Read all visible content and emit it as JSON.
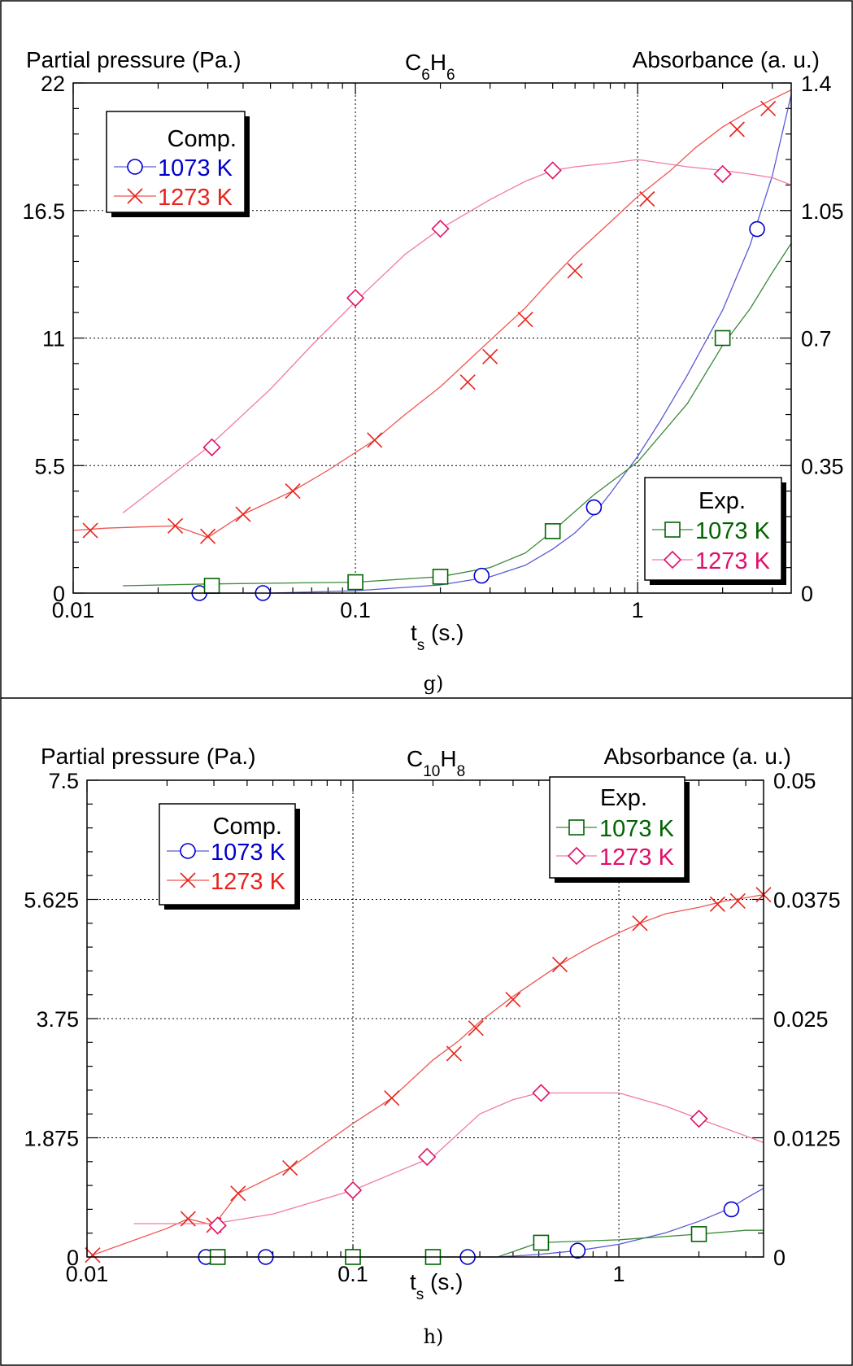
{
  "colors": {
    "comp_1073": "#0000cc",
    "comp_1273": "#e8221c",
    "exp_1073": "#006400",
    "exp_1273": "#e0106a",
    "line_exp_1073": "#3a8a3a",
    "line_exp_1273": "#f07aa8",
    "line_comp_1073": "#5a5ad8",
    "line_comp_1273": "#ef5550"
  },
  "chart_data": [
    {
      "type": "line",
      "panel_label": "g)",
      "title_main": "C",
      "title_sub1": "6",
      "title_mid": "H",
      "title_sub2": "6",
      "ylabel_left": "Partial pressure (Pa.)",
      "ylabel_right": "Absorbance (a. u.)",
      "xlabel_main": "t",
      "xlabel_sub": "s",
      "xlabel_unit": " (s.)",
      "x_scale": "log",
      "xlim": [
        0.01,
        3.5
      ],
      "x_ticks": [
        0.01,
        0.1,
        1
      ],
      "x_tick_labels": [
        "0.01",
        "0.1",
        "1"
      ],
      "ylim_left": [
        0,
        22
      ],
      "y_ticks_left": [
        0,
        5.5,
        11,
        16.5,
        22
      ],
      "y_tick_labels_left": [
        "0",
        "5.5",
        "11",
        "16.5",
        "22"
      ],
      "ylim_right": [
        0,
        1.4
      ],
      "y_tick_labels_right": [
        "0",
        "0.35",
        "0.7",
        "1.05",
        "1.4"
      ],
      "grid": true,
      "legend_comp": {
        "title": "Comp.",
        "placement": "top-left",
        "entries": [
          "1073 K",
          "1273 K"
        ]
      },
      "legend_exp": {
        "title": "Exp.",
        "placement": "bottom-right",
        "entries": [
          "1073 K",
          "1273 K"
        ]
      },
      "series": [
        {
          "name": "1073 K",
          "group": "Comp.",
          "marker": "circle",
          "axis": "left",
          "color_key": "comp_1073",
          "line_key": "line_comp_1073",
          "line_x": [
            0.027,
            0.05,
            0.1,
            0.2,
            0.3,
            0.4,
            0.5,
            0.6,
            0.7,
            0.8,
            1.0,
            1.2,
            1.5,
            2.0,
            2.5,
            3.0,
            3.5
          ],
          "line_y": [
            0.0,
            0.0,
            0.1,
            0.35,
            0.7,
            1.2,
            1.9,
            2.6,
            3.4,
            4.3,
            5.9,
            7.4,
            9.4,
            12.2,
            15.0,
            18.0,
            21.5
          ],
          "marker_x": [
            0.028,
            0.047,
            0.28,
            0.7,
            2.65
          ],
          "marker_y": [
            0.0,
            0.0,
            0.75,
            3.7,
            15.7
          ]
        },
        {
          "name": "1273 K",
          "group": "Comp.",
          "marker": "x",
          "axis": "left",
          "color_key": "comp_1273",
          "line_key": "line_comp_1273",
          "line_x": [
            0.01,
            0.013,
            0.017,
            0.023,
            0.03,
            0.04,
            0.06,
            0.08,
            0.117,
            0.15,
            0.2,
            0.25,
            0.3,
            0.4,
            0.5,
            0.6,
            0.8,
            1.0,
            1.3,
            1.6,
            2.0,
            2.5,
            3.0,
            3.5
          ],
          "line_y": [
            2.7,
            2.8,
            2.85,
            2.9,
            2.4,
            3.4,
            4.4,
            5.3,
            6.6,
            7.7,
            8.9,
            10.0,
            10.9,
            12.3,
            13.6,
            14.6,
            16.0,
            17.1,
            18.2,
            19.2,
            20.1,
            20.8,
            21.3,
            21.7
          ],
          "marker_x": [
            0.0115,
            0.023,
            0.03,
            0.04,
            0.06,
            0.117,
            0.25,
            0.3,
            0.4,
            0.6,
            1.08,
            2.25,
            2.9
          ],
          "marker_y": [
            2.7,
            2.9,
            2.45,
            3.4,
            4.4,
            6.6,
            9.1,
            10.2,
            11.8,
            13.9,
            17.0,
            20.0,
            20.9
          ]
        },
        {
          "name": "1073 K",
          "group": "Exp.",
          "marker": "square",
          "axis": "right",
          "color_key": "exp_1073",
          "line_key": "line_exp_1073",
          "line_x": [
            0.015,
            0.03,
            0.1,
            0.2,
            0.3,
            0.4,
            0.5,
            0.7,
            1.0,
            1.5,
            2.0,
            2.5,
            3.0,
            3.5
          ],
          "line_y": [
            0.02,
            0.025,
            0.03,
            0.045,
            0.07,
            0.11,
            0.17,
            0.27,
            0.36,
            0.52,
            0.68,
            0.78,
            0.88,
            0.96
          ],
          "marker_x": [
            0.031,
            0.1,
            0.2,
            0.5,
            2.0
          ],
          "marker_y": [
            0.02,
            0.03,
            0.045,
            0.17,
            0.7
          ]
        },
        {
          "name": "1273 K",
          "group": "Exp.",
          "marker": "diamond",
          "axis": "right",
          "color_key": "exp_1273",
          "line_key": "line_exp_1273",
          "line_x": [
            0.015,
            0.03,
            0.05,
            0.07,
            0.1,
            0.15,
            0.2,
            0.3,
            0.4,
            0.5,
            0.6,
            0.8,
            1.0,
            1.5,
            2.0,
            2.5,
            3.0,
            3.5
          ],
          "line_y": [
            0.22,
            0.4,
            0.56,
            0.68,
            0.8,
            0.93,
            1.0,
            1.08,
            1.13,
            1.16,
            1.17,
            1.18,
            1.19,
            1.17,
            1.16,
            1.15,
            1.14,
            1.12
          ],
          "marker_x": [
            0.031,
            0.1,
            0.2,
            0.5,
            2.0
          ],
          "marker_y": [
            0.4,
            0.81,
            1.0,
            1.16,
            1.15
          ]
        }
      ]
    },
    {
      "type": "line",
      "panel_label": "h)",
      "title_main": "C",
      "title_sub1": "10",
      "title_mid": "H",
      "title_sub2": "8",
      "ylabel_left": "Partial pressure (Pa.)",
      "ylabel_right": "Absorbance (a. u.)",
      "xlabel_main": "t",
      "xlabel_sub": "s",
      "xlabel_unit": " (s.)",
      "x_scale": "log",
      "xlim": [
        0.01,
        3.5
      ],
      "x_ticks": [
        0.01,
        0.1,
        1
      ],
      "x_tick_labels": [
        "0.01",
        "0.1",
        "1"
      ],
      "ylim_left": [
        0,
        7.5
      ],
      "y_ticks_left": [
        0,
        1.875,
        3.75,
        5.625,
        7.5
      ],
      "y_tick_labels_left": [
        "0",
        "1.875",
        "3.75",
        "5.625",
        "7.5"
      ],
      "ylim_right": [
        0,
        0.05
      ],
      "y_tick_labels_right": [
        "0",
        "0.0125",
        "0.025",
        "0.0375",
        "0.05"
      ],
      "grid": true,
      "legend_comp": {
        "title": "Comp.",
        "placement": "top-left",
        "entries": [
          "1073 K",
          "1273 K"
        ]
      },
      "legend_exp": {
        "title": "Exp.",
        "placement": "top-right",
        "entries": [
          "1073 K",
          "1273 K"
        ]
      },
      "series": [
        {
          "name": "1073 K",
          "group": "Comp.",
          "marker": "circle",
          "axis": "left",
          "color_key": "comp_1073",
          "line_key": "line_comp_1073",
          "line_x": [
            0.028,
            0.047,
            0.1,
            0.2,
            0.27,
            0.35,
            0.5,
            0.7,
            1.0,
            1.5,
            2.0,
            2.6,
            3.0,
            3.5
          ],
          "line_y": [
            0.0,
            0.0,
            0.0,
            0.0,
            0.0,
            0.0,
            0.04,
            0.1,
            0.2,
            0.38,
            0.56,
            0.76,
            0.92,
            1.08
          ],
          "marker_x": [
            0.028,
            0.047,
            0.27,
            0.7,
            2.65
          ],
          "marker_y": [
            0.0,
            0.0,
            0.0,
            0.1,
            0.75
          ]
        },
        {
          "name": "1273 K",
          "group": "Comp.",
          "marker": "x",
          "axis": "left",
          "color_key": "comp_1273",
          "line_key": "line_comp_1273",
          "line_x": [
            0.0105,
            0.02,
            0.024,
            0.03,
            0.037,
            0.058,
            0.1,
            0.14,
            0.2,
            0.25,
            0.3,
            0.4,
            0.6,
            0.8,
            1.0,
            1.2,
            1.5,
            2.0,
            2.5,
            3.0,
            3.5
          ],
          "line_y": [
            0.03,
            0.45,
            0.6,
            0.5,
            1.0,
            1.4,
            2.1,
            2.5,
            3.1,
            3.4,
            3.7,
            4.1,
            4.6,
            4.9,
            5.1,
            5.25,
            5.4,
            5.5,
            5.6,
            5.65,
            5.7
          ],
          "marker_x": [
            0.0105,
            0.024,
            0.03,
            0.037,
            0.058,
            0.14,
            0.24,
            0.29,
            0.4,
            0.6,
            1.2,
            2.35,
            2.8,
            3.5
          ],
          "marker_y": [
            0.03,
            0.6,
            0.5,
            1.0,
            1.4,
            2.5,
            3.2,
            3.6,
            4.05,
            4.6,
            5.25,
            5.55,
            5.6,
            5.7
          ]
        },
        {
          "name": "1073 K",
          "group": "Exp.",
          "marker": "square",
          "axis": "right",
          "color_key": "exp_1073",
          "line_key": "line_exp_1073",
          "line_x": [
            0.03,
            0.1,
            0.2,
            0.35,
            0.5,
            1.0,
            2.0,
            3.0,
            3.5
          ],
          "line_y": [
            0.0,
            0.0,
            0.0,
            0.0,
            0.0015,
            0.0018,
            0.0024,
            0.0028,
            0.0028
          ],
          "marker_x": [
            0.031,
            0.1,
            0.2,
            0.51,
            2.0
          ],
          "marker_y": [
            0.0,
            0.0,
            0.0,
            0.0015,
            0.0024
          ]
        },
        {
          "name": "1273 K",
          "group": "Exp.",
          "marker": "diamond",
          "axis": "right",
          "color_key": "exp_1273",
          "line_key": "line_exp_1273",
          "line_x": [
            0.015,
            0.03,
            0.05,
            0.1,
            0.2,
            0.3,
            0.4,
            0.5,
            0.7,
            1.0,
            1.5,
            2.0,
            3.0,
            3.5
          ],
          "line_y": [
            0.0035,
            0.0035,
            0.0045,
            0.007,
            0.0105,
            0.015,
            0.0165,
            0.0172,
            0.0172,
            0.0172,
            0.0158,
            0.0145,
            0.0127,
            0.012
          ],
          "marker_x": [
            0.031,
            0.1,
            0.19,
            0.51,
            2.0
          ],
          "marker_y": [
            0.0033,
            0.007,
            0.0105,
            0.0172,
            0.0145
          ]
        }
      ]
    }
  ]
}
